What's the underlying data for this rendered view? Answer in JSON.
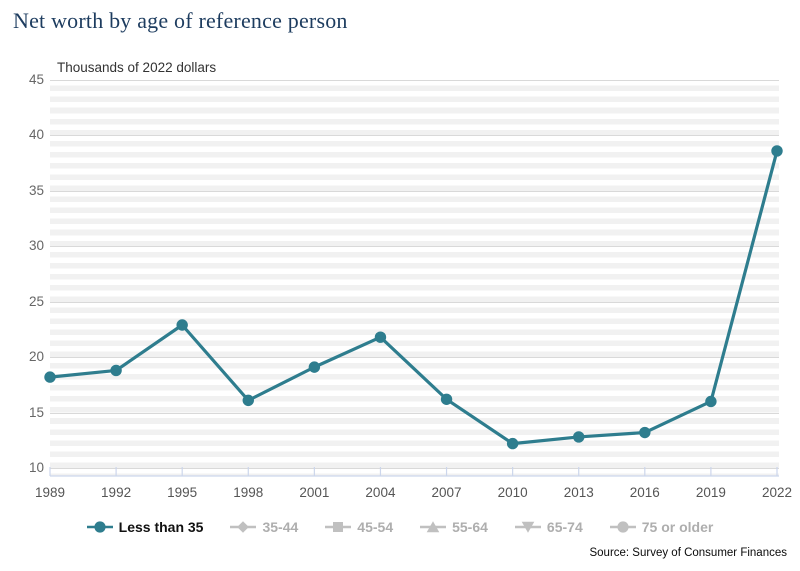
{
  "title": "Net worth by age of reference person",
  "subtitle": "Thousands of 2022 dollars",
  "source": "Source: Survey of Consumer Finances",
  "colors": {
    "accent_teal": "#2e7d8e",
    "title_navy": "#1d3c5f",
    "grid_major": "#d9d9d9",
    "band_gray": "#f1f1f1",
    "axis_line": "#ccd6ec",
    "y_label": "#666666",
    "x_label": "#555555",
    "legend_inactive_marker": "#c0c0c0",
    "legend_inactive_text": "#aeaeae",
    "legend_active_text": "#111111"
  },
  "chart_data": {
    "type": "line",
    "title": "Net worth by age of reference person",
    "subtitle": "Thousands of 2022 dollars",
    "x": [
      1989,
      1992,
      1995,
      1998,
      2001,
      2004,
      2007,
      2010,
      2013,
      2016,
      2019,
      2022
    ],
    "series": [
      {
        "name": "Less than 35",
        "marker": "circle",
        "active": true,
        "values": [
          18.2,
          18.8,
          22.9,
          16.1,
          19.1,
          21.8,
          16.2,
          12.2,
          12.8,
          13.2,
          16.0,
          38.6
        ]
      }
    ],
    "legend": [
      {
        "label": "Less than 35",
        "marker": "circle",
        "active": true
      },
      {
        "label": "35-44",
        "marker": "diamond",
        "active": false
      },
      {
        "label": "45-54",
        "marker": "square",
        "active": false
      },
      {
        "label": "55-64",
        "marker": "triangle",
        "active": false
      },
      {
        "label": "65-74",
        "marker": "triangle-down",
        "active": false
      },
      {
        "label": "75 or older",
        "marker": "circle",
        "active": false
      }
    ],
    "ylim": [
      10,
      45
    ],
    "ytick_step": 5,
    "grid": "horizontal-bands",
    "legend_position": "bottom",
    "source_note": "Source: Survey of Consumer Finances"
  }
}
